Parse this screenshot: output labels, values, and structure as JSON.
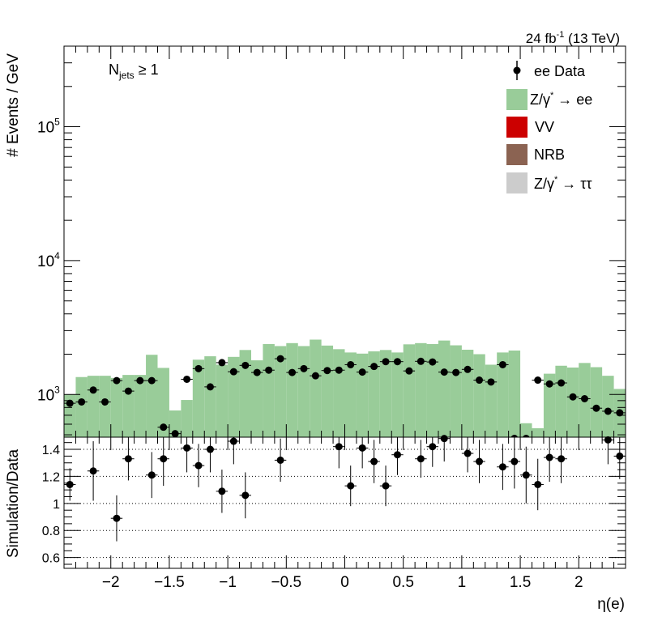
{
  "chart_data": [
    {
      "type": "bar",
      "panel": "main",
      "ylabel": "# Events / GeV",
      "yscale": "log",
      "ylim": [
        480,
        400000
      ],
      "xlim": [
        -2.4,
        2.4
      ],
      "ytick_labels": [
        "10",
        "10",
        "10"
      ],
      "ytick_exponents": [
        "3",
        "4",
        "5"
      ],
      "ytick_values": [
        1000,
        10000,
        100000
      ],
      "lumi_label": {
        "prefix": "24 fb",
        "exponent": "-1",
        "suffix": " (13 TeV)"
      },
      "cut_label": {
        "base": "N",
        "subscript": "jets",
        "rest": " ≥ 1"
      },
      "legend_position": "top-right",
      "legend": [
        {
          "label": "ee Data",
          "kind": "marker",
          "color": "#000000"
        },
        {
          "label": "Z/γ",
          "sup": "*",
          "rest": " → ee",
          "kind": "box",
          "color": "#99cc99"
        },
        {
          "label": "VV",
          "kind": "box",
          "color": "#cc0000"
        },
        {
          "label": "NRB",
          "kind": "box",
          "color": "#8b6352"
        },
        {
          "label": "Z/γ",
          "sup": "*",
          "rest": " → ττ",
          "kind": "box",
          "color": "#cccccc"
        }
      ],
      "bin_edges": [
        -2.4,
        -2.3,
        -2.2,
        -2.1,
        -2.0,
        -1.9,
        -1.8,
        -1.7,
        -1.6,
        -1.5,
        -1.4,
        -1.3,
        -1.2,
        -1.1,
        -1.0,
        -0.9,
        -0.8,
        -0.7,
        -0.6,
        -0.5,
        -0.4,
        -0.3,
        -0.2,
        -0.1,
        0.0,
        0.1,
        0.2,
        0.3,
        0.4,
        0.5,
        0.6,
        0.7,
        0.8,
        0.9,
        1.0,
        1.1,
        1.2,
        1.3,
        1.4,
        1.5,
        1.6,
        1.7,
        1.8,
        1.9,
        2.0,
        2.1,
        2.2,
        2.3,
        2.4
      ],
      "series": [
        {
          "name": "Z/γ* → ee",
          "color": "#99cc99",
          "values": [
            1000,
            1350,
            1380,
            1380,
            1330,
            1400,
            1400,
            1980,
            1580,
            760,
            910,
            1820,
            1930,
            1670,
            1910,
            2150,
            1800,
            2380,
            2300,
            2420,
            2300,
            2570,
            2320,
            2180,
            2060,
            2020,
            2100,
            2150,
            2060,
            2370,
            2420,
            2380,
            2530,
            2330,
            2160,
            2000,
            1670,
            2060,
            2130,
            610,
            560,
            1430,
            1640,
            1590,
            1720,
            1600,
            1380,
            1100
          ]
        }
      ],
      "data_points": {
        "name": "ee Data",
        "x": [
          -2.35,
          -2.25,
          -2.15,
          -2.05,
          -1.95,
          -1.85,
          -1.75,
          -1.65,
          -1.55,
          -1.45,
          -1.35,
          -1.25,
          -1.15,
          -1.05,
          -0.95,
          -0.85,
          -0.75,
          -0.65,
          -0.55,
          -0.45,
          -0.35,
          -0.25,
          -0.15,
          -0.05,
          0.05,
          0.15,
          0.25,
          0.35,
          0.45,
          0.55,
          0.65,
          0.75,
          0.85,
          0.95,
          1.05,
          1.15,
          1.25,
          1.35,
          1.45,
          1.55,
          1.65,
          1.75,
          1.85,
          1.95,
          2.05,
          2.15,
          2.25,
          2.35
        ],
        "y": [
          860,
          880,
          1080,
          880,
          1270,
          1060,
          1270,
          1270,
          570,
          510,
          1300,
          1560,
          1140,
          1730,
          1480,
          1650,
          1460,
          1520,
          1850,
          1460,
          1560,
          1380,
          1510,
          1520,
          1670,
          1470,
          1620,
          1760,
          1760,
          1500,
          1770,
          1750,
          1470,
          1460,
          1540,
          1280,
          1240,
          1670,
          470,
          470,
          1280,
          1200,
          1220,
          960,
          930,
          790,
          750,
          730
        ]
      }
    },
    {
      "type": "scatter",
      "panel": "ratio",
      "xlabel": "η(e)",
      "ylabel": "Simulation/Data",
      "ylim": [
        0.52,
        1.49
      ],
      "xlim": [
        -2.4,
        2.4
      ],
      "ytick_labels": [
        "0.6",
        "0.8",
        "1",
        "1.2",
        "1.4"
      ],
      "ytick_values": [
        0.6,
        0.8,
        1.0,
        1.2,
        1.4
      ],
      "xtick_labels": [
        "−2",
        "−1.5",
        "−1",
        "−0.5",
        "0",
        "0.5",
        "1",
        "1.5",
        "2"
      ],
      "xtick_values": [
        -2,
        -1.5,
        -1,
        -0.5,
        0,
        0.5,
        1,
        1.5,
        2
      ],
      "grid": true,
      "x": [
        -2.35,
        -2.25,
        -2.15,
        -2.05,
        -1.95,
        -1.85,
        -1.75,
        -1.65,
        -1.55,
        -1.45,
        -1.35,
        -1.25,
        -1.15,
        -1.05,
        -0.95,
        -0.85,
        -0.75,
        -0.65,
        -0.55,
        -0.45,
        -0.35,
        -0.25,
        -0.15,
        -0.05,
        0.05,
        0.15,
        0.25,
        0.35,
        0.45,
        0.55,
        0.65,
        0.75,
        0.85,
        0.95,
        1.05,
        1.15,
        1.25,
        1.35,
        1.45,
        1.55,
        1.65,
        1.75,
        1.85,
        1.95,
        2.05,
        2.15,
        2.25,
        2.35
      ],
      "y": [
        1.14,
        null,
        1.24,
        null,
        0.89,
        1.33,
        null,
        1.21,
        1.33,
        null,
        1.41,
        1.28,
        1.4,
        1.09,
        1.46,
        1.06,
        null,
        null,
        1.32,
        null,
        null,
        null,
        null,
        1.42,
        1.13,
        1.41,
        1.31,
        1.13,
        1.36,
        null,
        1.33,
        1.42,
        1.48,
        null,
        1.37,
        1.31,
        null,
        1.27,
        1.31,
        1.21,
        1.14,
        1.34,
        1.33,
        null,
        null,
        null,
        1.47,
        1.35
      ],
      "yerr": [
        0.12,
        null,
        0.22,
        null,
        0.17,
        0.16,
        null,
        0.17,
        0.2,
        null,
        0.18,
        0.16,
        0.17,
        0.16,
        0.17,
        0.17,
        null,
        null,
        0.16,
        null,
        null,
        null,
        null,
        0.16,
        0.15,
        0.15,
        0.16,
        0.15,
        0.15,
        null,
        0.14,
        0.15,
        0.17,
        null,
        0.14,
        0.16,
        null,
        0.17,
        0.2,
        0.21,
        0.19,
        0.18,
        0.18,
        null,
        null,
        null,
        0.18,
        0.17
      ]
    }
  ]
}
